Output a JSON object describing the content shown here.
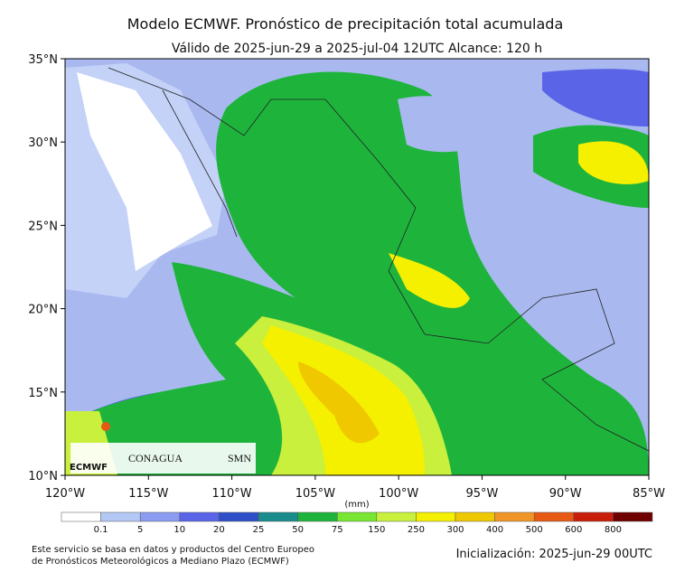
{
  "title": "Modelo ECMWF. Pronóstico de precipitación total acumulada",
  "subtitle": "Válido de 2025-jun-29 a 2025-jul-04 12UTC   Alcance: 120 h",
  "lat_labels": [
    "35°N",
    "30°N",
    "25°N",
    "20°N",
    "15°N",
    "10°N"
  ],
  "lon_labels": [
    "120°W",
    "115°W",
    "110°W",
    "105°W",
    "100°W",
    "95°W",
    "90°W",
    "85°W"
  ],
  "colorbar": {
    "unit": "(mm)",
    "labels": [
      "0.1",
      "5",
      "10",
      "20",
      "25",
      "50",
      "75",
      "150",
      "250",
      "300",
      "400",
      "500",
      "600",
      "800"
    ],
    "colors": [
      "#ffffff",
      "#b4c8f5",
      "#8c9cf0",
      "#5a64e6",
      "#2f4fc8",
      "#1a8c8c",
      "#1eb43c",
      "#78e632",
      "#c8f03c",
      "#f5f000",
      "#f0c800",
      "#f09628",
      "#e65a14",
      "#c81e0a",
      "#6e0000"
    ]
  },
  "logos": [
    "ECMWF",
    "CONAGUA",
    "SMN"
  ],
  "footer": {
    "note": [
      "Este servicio se basa en datos y productos del Centro Europeo",
      "de Pronósticos Meteorológicos a Mediano Plazo (ECMWF)"
    ],
    "init": "Inicialización: 2025-jun-29 00UTC"
  }
}
